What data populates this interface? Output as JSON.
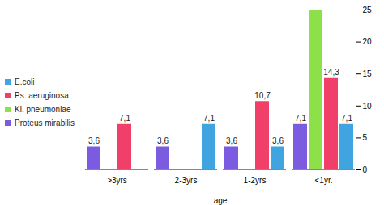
{
  "chart_data": {
    "type": "bar",
    "xlabel": "age",
    "categories": [
      ">3yrs",
      "2-3yrs",
      "1-2yrs",
      "<1yr."
    ],
    "series": [
      {
        "name": "E.coli",
        "color": "#3fa4e0",
        "values": [
          null,
          7.1,
          3.6,
          7.1
        ],
        "value_labels": [
          null,
          "7,1",
          "3,6",
          "7,1"
        ]
      },
      {
        "name": "Ps. aeruginosa",
        "color": "#f0406a",
        "values": [
          7.1,
          null,
          10.7,
          14.3
        ],
        "value_labels": [
          "7,1",
          null,
          "10,7",
          "14,3"
        ]
      },
      {
        "name": "Kl. pneumoniae",
        "color": "#8ee04a",
        "values": [
          null,
          null,
          null,
          25
        ],
        "value_labels": [
          null,
          null,
          null,
          null
        ]
      },
      {
        "name": "Proteus mirabilis",
        "color": "#7b5ce0",
        "values": [
          3.6,
          3.6,
          3.6,
          7.1
        ],
        "value_labels": [
          "3,6",
          "3,6",
          "3,6",
          "7,1"
        ]
      }
    ],
    "ylim": [
      0,
      25
    ],
    "yticks": [
      0,
      5,
      10,
      15,
      20,
      25
    ],
    "grid": false,
    "legend": "left",
    "data_labels": true
  }
}
